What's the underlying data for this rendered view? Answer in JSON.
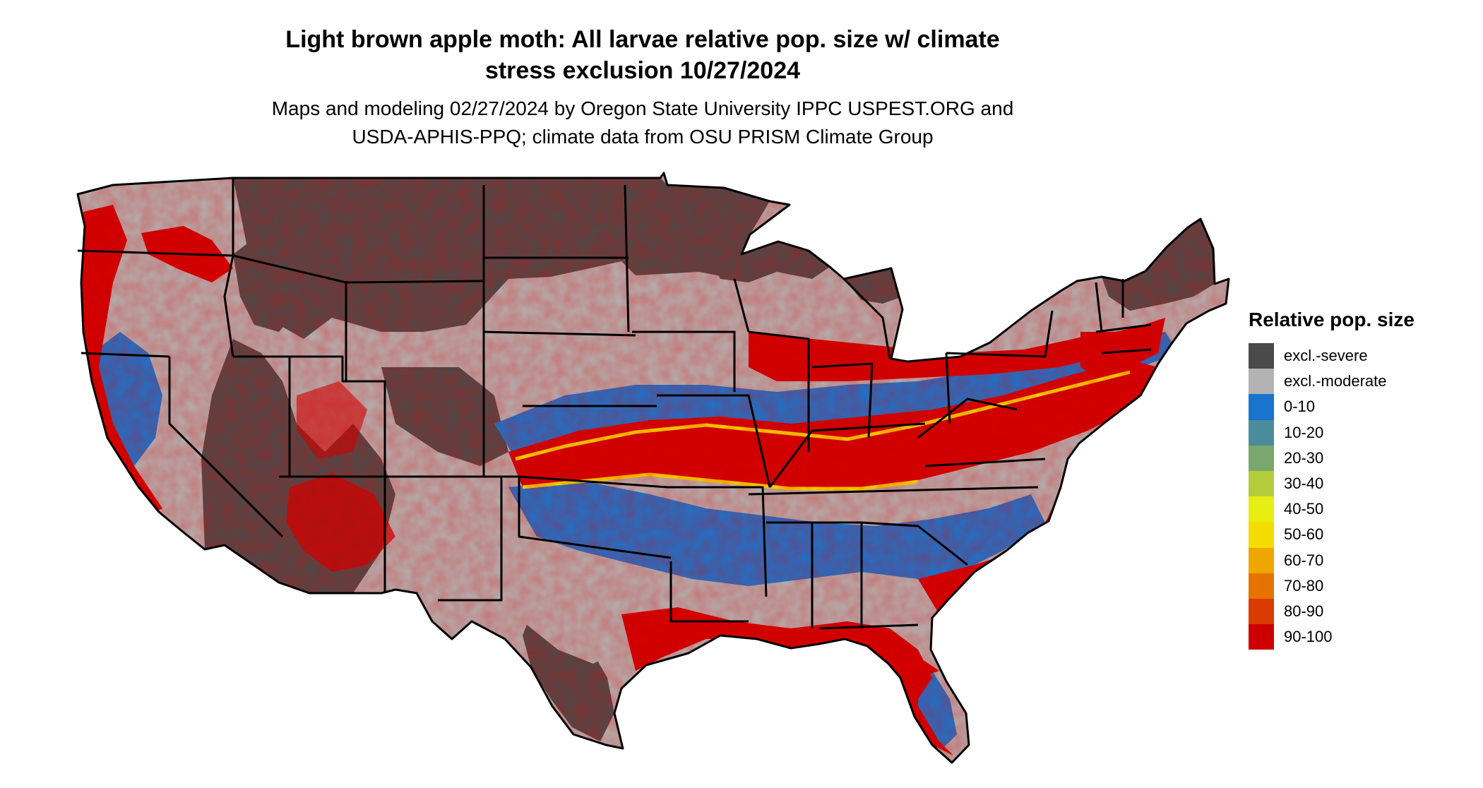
{
  "title_lines": [
    "Light brown apple moth: All larvae relative pop. size w/ climate",
    "stress exclusion 10/27/2024"
  ],
  "subtitle_lines": [
    "Maps and modeling 02/27/2024 by Oregon State University IPPC USPEST.ORG and",
    "USDA-APHIS-PPQ; climate data from OSU PRISM Climate Group"
  ],
  "legend": {
    "title": "Relative pop. size",
    "items": [
      {
        "label": "excl.-severe",
        "color": "#4a4a4a"
      },
      {
        "label": "excl.-moderate",
        "color": "#b3b3b3"
      },
      {
        "label": "0-10",
        "color": "#1874cd"
      },
      {
        "label": "10-20",
        "color": "#4a8c9c"
      },
      {
        "label": "20-30",
        "color": "#7aa86c"
      },
      {
        "label": "30-40",
        "color": "#b4cc3c"
      },
      {
        "label": "40-50",
        "color": "#e6ee14"
      },
      {
        "label": "50-60",
        "color": "#f5dc00"
      },
      {
        "label": "60-70",
        "color": "#eea600"
      },
      {
        "label": "70-80",
        "color": "#e67300"
      },
      {
        "label": "80-90",
        "color": "#d93b00"
      },
      {
        "label": "90-100",
        "color": "#cc0000"
      }
    ]
  },
  "map_colors": {
    "severe": "#4a4a4a",
    "moderate": "#b3b3b3",
    "low": "#1874cd",
    "mid": "#f5dc00",
    "high": "#cc0000",
    "border": "#000000"
  }
}
